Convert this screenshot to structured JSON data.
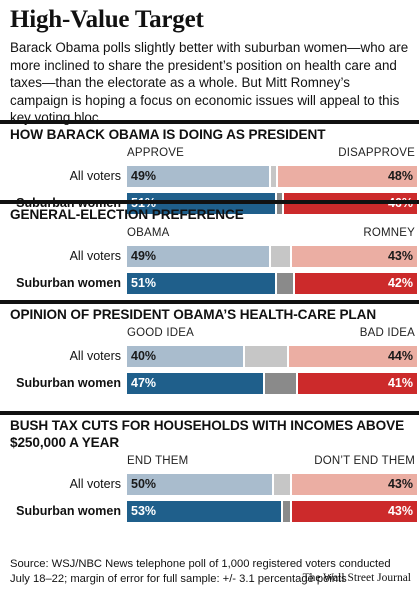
{
  "header": {
    "title": "High-Value Target",
    "intro": "Barack Obama polls slightly better with suburban women—who are more inclined to share the president’s position on health care and taxes—than the electorate as a whole. But Mitt Romney’s campaign is hoping a focus on economic issues will appeal to this key voting bloc."
  },
  "colors": {
    "all_voters_left": "#a9bccd",
    "all_voters_middle": "#c6c6c6",
    "all_voters_right": "#ebaea3",
    "suburban_left": "#1f5f8b",
    "suburban_middle": "#8a8a8a",
    "suburban_right": "#cc2a2b",
    "rule": "#111111"
  },
  "chart_data": [
    {
      "type": "bar",
      "stacked": true,
      "title": "HOW BARACK OBAMA IS DOING AS PRESIDENT",
      "left_header": "APPROVE",
      "right_header": "DISAPPROVE",
      "xlim": [
        0,
        100
      ],
      "rows": [
        {
          "label": "All voters",
          "left": 49,
          "right": 48,
          "left_label": "49%",
          "right_label": "48%"
        },
        {
          "label": "Suburban women",
          "left": 51,
          "right": 46,
          "left_label": "51%",
          "right_label": "46%"
        }
      ]
    },
    {
      "type": "bar",
      "stacked": true,
      "title": "GENERAL-ELECTION PREFERENCE",
      "left_header": "OBAMA",
      "right_header": "ROMNEY",
      "xlim": [
        0,
        100
      ],
      "rows": [
        {
          "label": "All voters",
          "left": 49,
          "right": 43,
          "left_label": "49%",
          "right_label": "43%"
        },
        {
          "label": "Suburban women",
          "left": 51,
          "right": 42,
          "left_label": "51%",
          "right_label": "42%"
        }
      ]
    },
    {
      "type": "bar",
      "stacked": true,
      "title": "OPINION OF PRESIDENT OBAMA’S HEALTH-CARE PLAN",
      "left_header": "GOOD IDEA",
      "right_header": "BAD IDEA",
      "xlim": [
        0,
        100
      ],
      "rows": [
        {
          "label": "All voters",
          "left": 40,
          "right": 44,
          "left_label": "40%",
          "right_label": "44%"
        },
        {
          "label": "Suburban women",
          "left": 47,
          "right": 41,
          "left_label": "47%",
          "right_label": "41%"
        }
      ]
    },
    {
      "type": "bar",
      "stacked": true,
      "title": "BUSH TAX CUTS FOR HOUSEHOLDS WITH INCOMES ABOVE $250,000 A YEAR",
      "left_header": "END THEM",
      "right_header": "DON’T END THEM",
      "xlim": [
        0,
        100
      ],
      "rows": [
        {
          "label": "All voters",
          "left": 50,
          "right": 43,
          "left_label": "50%",
          "right_label": "43%"
        },
        {
          "label": "Suburban women",
          "left": 53,
          "right": 43,
          "left_label": "53%",
          "right_label": "43%"
        }
      ]
    }
  ],
  "footer": {
    "source": "Source: WSJ/NBC News telephone poll of 1,000 registered voters conducted July 18–22; margin of error for full sample: +/- 3.1 percentage points",
    "credit": "The Wall Street Journal"
  }
}
